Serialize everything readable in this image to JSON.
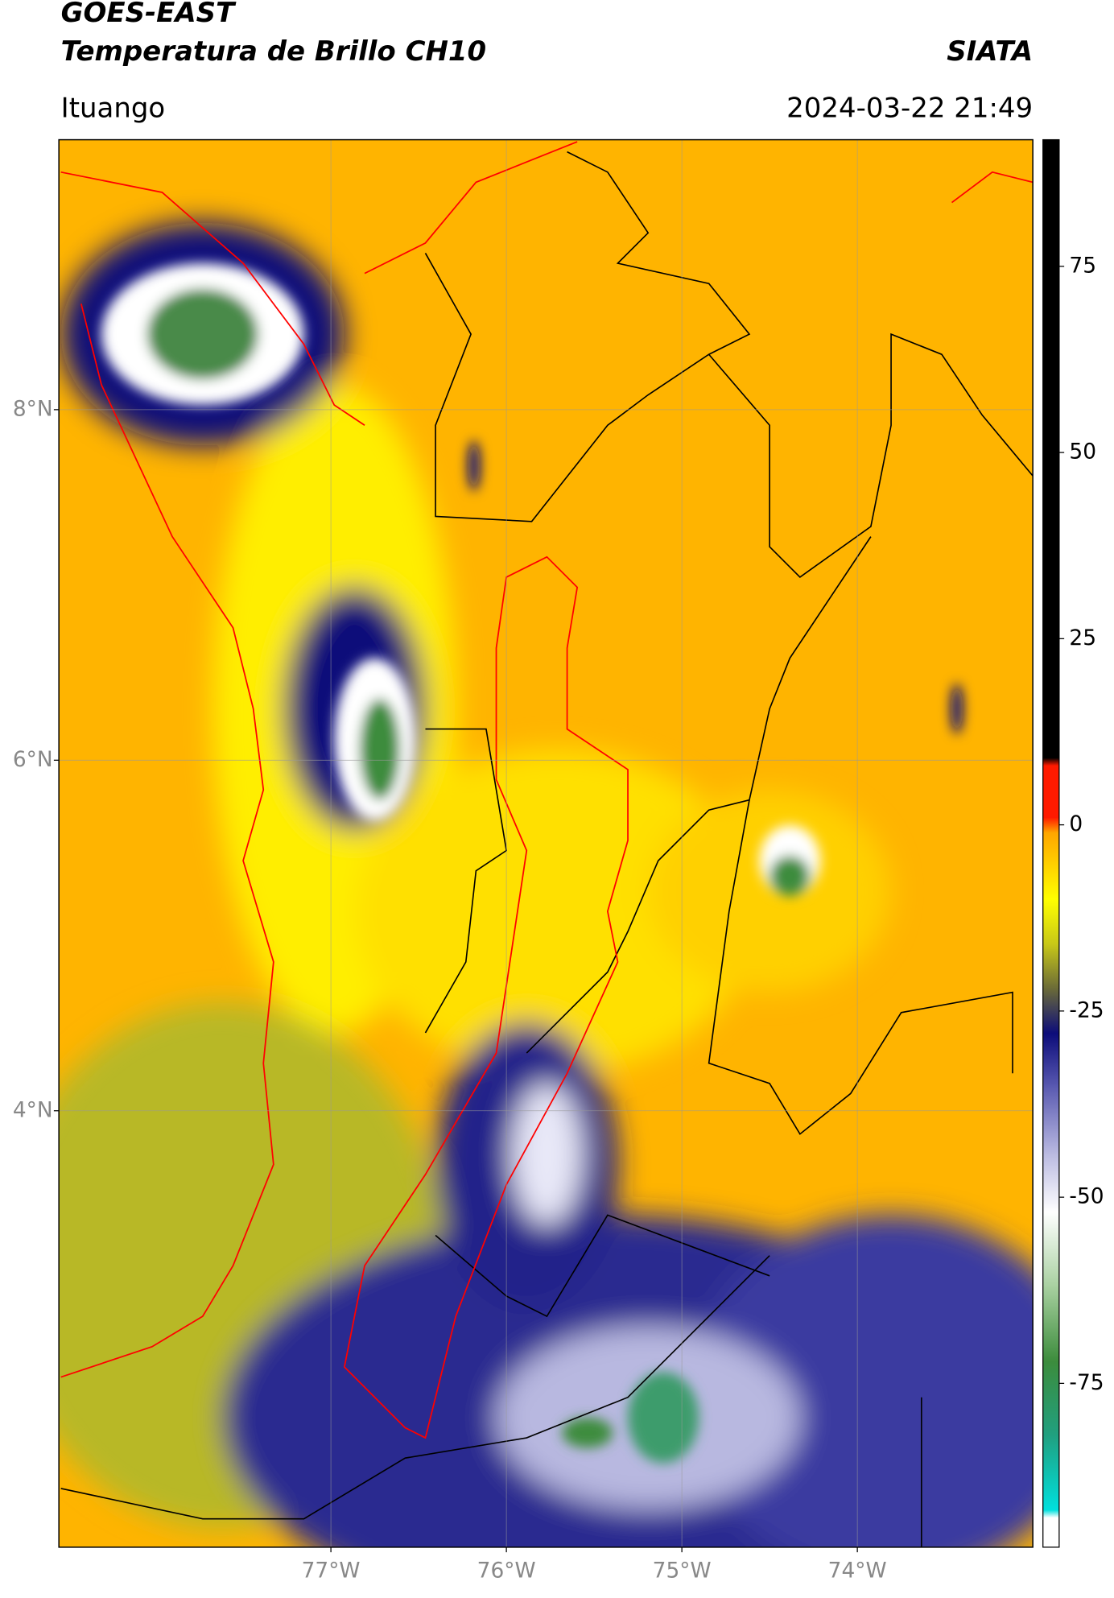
{
  "chart_data": {
    "type": "map",
    "title": "GOES-EAST",
    "subtitle": "Temperatura de Brillo CH10",
    "source": "SIATA",
    "region": "Ituango",
    "timestamp": "2024-03-22 21:49",
    "xlim": [
      -78.55,
      -73.0
    ],
    "ylim": [
      1.51,
      9.54
    ],
    "xticks": [
      {
        "value": -77,
        "label": "77°W"
      },
      {
        "value": -76,
        "label": "76°W"
      },
      {
        "value": -75,
        "label": "75°W"
      },
      {
        "value": -74,
        "label": "74°W"
      }
    ],
    "yticks": [
      {
        "value": 8,
        "label": "8°N"
      },
      {
        "value": 6,
        "label": "6°N"
      },
      {
        "value": 4,
        "label": "4°N"
      }
    ],
    "grid": true,
    "colorbar": {
      "ticks": [
        75,
        50,
        25,
        0,
        -25,
        -50,
        -75
      ],
      "colormap": [
        {
          "value": -97,
          "color": "#ffffff"
        },
        {
          "value": -93,
          "color": "#ffffff"
        },
        {
          "value": -92,
          "color": "#00e0dd"
        },
        {
          "value": -82,
          "color": "#20a080"
        },
        {
          "value": -72,
          "color": "#3c8c3c"
        },
        {
          "value": -62,
          "color": "#a8d0a0"
        },
        {
          "value": -52,
          "color": "#ffffff"
        },
        {
          "value": -44,
          "color": "#b8b8e0"
        },
        {
          "value": -35,
          "color": "#5858b0"
        },
        {
          "value": -28,
          "color": "#0c0c7a"
        },
        {
          "value": -22,
          "color": "#6a6a38"
        },
        {
          "value": -16,
          "color": "#c8c818"
        },
        {
          "value": -10,
          "color": "#ffff00"
        },
        {
          "value": -1,
          "color": "#ffa500"
        },
        {
          "value": 1,
          "color": "#ff1a00"
        },
        {
          "value": 8,
          "color": "#ff1a00"
        },
        {
          "value": 9,
          "color": "#000000"
        },
        {
          "value": 92,
          "color": "#000000"
        }
      ]
    }
  }
}
